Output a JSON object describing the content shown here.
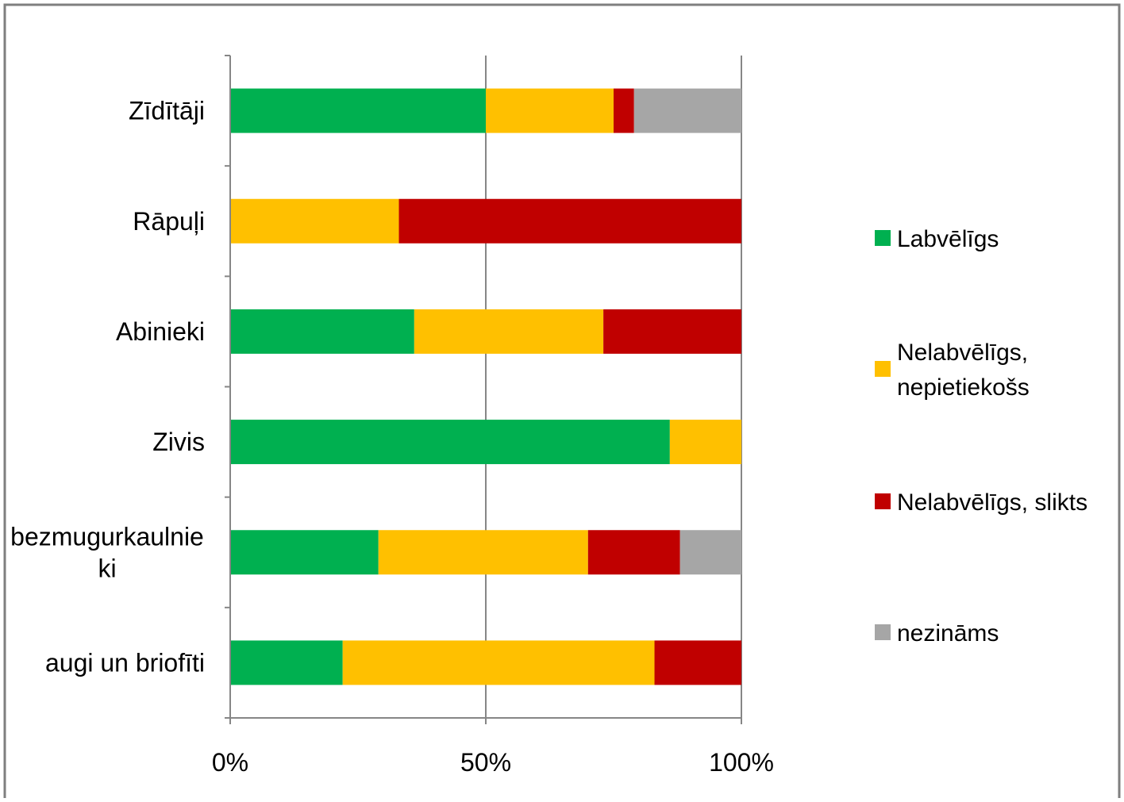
{
  "chart_data": {
    "type": "bar",
    "orientation": "horizontal",
    "stacked": "percent",
    "categories": [
      [
        "Zīdītāji"
      ],
      [
        "Rāpuļi"
      ],
      [
        "Abinieki"
      ],
      [
        "Zivis"
      ],
      [
        "bezmugurkaulnie",
        "ki"
      ],
      [
        "augi un briofīti"
      ]
    ],
    "series": [
      {
        "name": "Labvēlīgs",
        "color": "#00b050",
        "values": [
          50,
          0,
          36,
          86,
          29,
          22
        ]
      },
      {
        "name": "Nelabvēlīgs, nepietiekošs",
        "color": "#ffc000",
        "values": [
          25,
          33,
          37,
          14,
          41,
          61
        ]
      },
      {
        "name": "Nelabvēlīgs, slikts",
        "color": "#c00000",
        "values": [
          4,
          67,
          27,
          0,
          18,
          17
        ]
      },
      {
        "name": "nezināms",
        "color": "#a6a6a6",
        "values": [
          21,
          0,
          0,
          0,
          12,
          0
        ]
      }
    ],
    "xlim": [
      0,
      100
    ],
    "xticks": [
      "0%",
      "50%",
      "100%"
    ],
    "grid": true,
    "legend": {
      "position": "right",
      "entries": [
        [
          "Labvēlīgs"
        ],
        [
          "Nelabvēlīgs,",
          "nepietiekošs"
        ],
        [
          "Nelabvēlīgs, slikts"
        ],
        [
          "nezināms"
        ]
      ]
    }
  }
}
